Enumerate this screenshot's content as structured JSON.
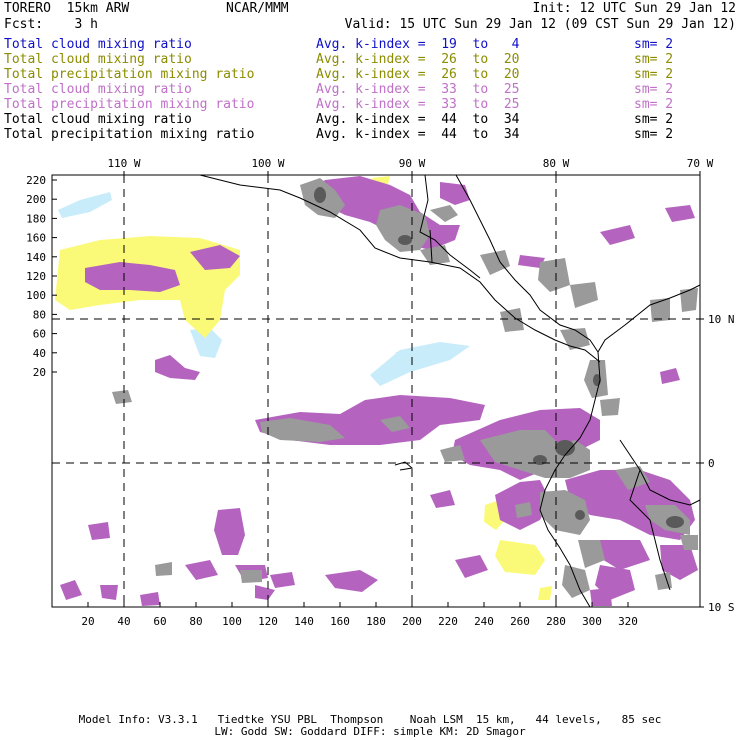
{
  "header": {
    "model": "TORERO  15km ARW",
    "org": "NCAR/MMM",
    "init": "Init: 12 UTC Sun 29 Jan 12",
    "fcst": "Fcst:    3 h",
    "valid": "Valid: 15 UTC Sun 29 Jan 12 (09 CST Sun 29 Jan 12)"
  },
  "legend": [
    {
      "name": "Total cloud mixing ratio",
      "kindex": "Avg. k-index =  19  to   4",
      "sm": "sm= 2",
      "color": "#1010c8"
    },
    {
      "name": "Total cloud mixing ratio",
      "kindex": "Avg. k-index =  26  to  20",
      "sm": "sm= 2",
      "color": "#8c8c00"
    },
    {
      "name": "Total precipitation mixing ratio",
      "kindex": "Avg. k-index =  26  to  20",
      "sm": "sm= 2",
      "color": "#8c8c00"
    },
    {
      "name": "Total cloud mixing ratio",
      "kindex": "Avg. k-index =  33  to  25",
      "sm": "sm= 2",
      "color": "#c070c8"
    },
    {
      "name": "Total precipitation mixing ratio",
      "kindex": "Avg. k-index =  33  to  25",
      "sm": "sm= 2",
      "color": "#c070c8"
    },
    {
      "name": "Total cloud mixing ratio",
      "kindex": "Avg. k-index =  44  to  34",
      "sm": "sm= 2",
      "color": "#000000"
    },
    {
      "name": "Total precipitation mixing ratio",
      "kindex": "Avg. k-index =  44  to  34",
      "sm": "sm= 2",
      "color": "#000000"
    }
  ],
  "map": {
    "lon_labels": [
      "110 W",
      "100 W",
      "90 W",
      "80 W",
      "70 W"
    ],
    "lat_labels": [
      "10 N",
      "0",
      "10 S"
    ],
    "y_ticks": [
      "220",
      "200",
      "180",
      "160",
      "140",
      "120",
      "100",
      "80",
      "60",
      "40",
      "20"
    ],
    "x_ticks": [
      "20",
      "40",
      "60",
      "80",
      "100",
      "120",
      "140",
      "160",
      "180",
      "200",
      "220",
      "240",
      "260",
      "280",
      "300",
      "320"
    ],
    "colors": {
      "light_blue": "#c8ecfa",
      "yellow": "#fafa78",
      "purple": "#b464be",
      "gray": "#9a9a9a",
      "dark_gray": "#5a5a5a",
      "coast": "#000000"
    }
  },
  "footer": {
    "line1": "Model Info: V3.3.1   Tiedtke YSU PBL  Thompson    Noah LSM  15 km,   44 levels,   85 sec",
    "line2": "LW: Godd SW: Goddard DIFF: simple KM: 2D Smagor"
  }
}
